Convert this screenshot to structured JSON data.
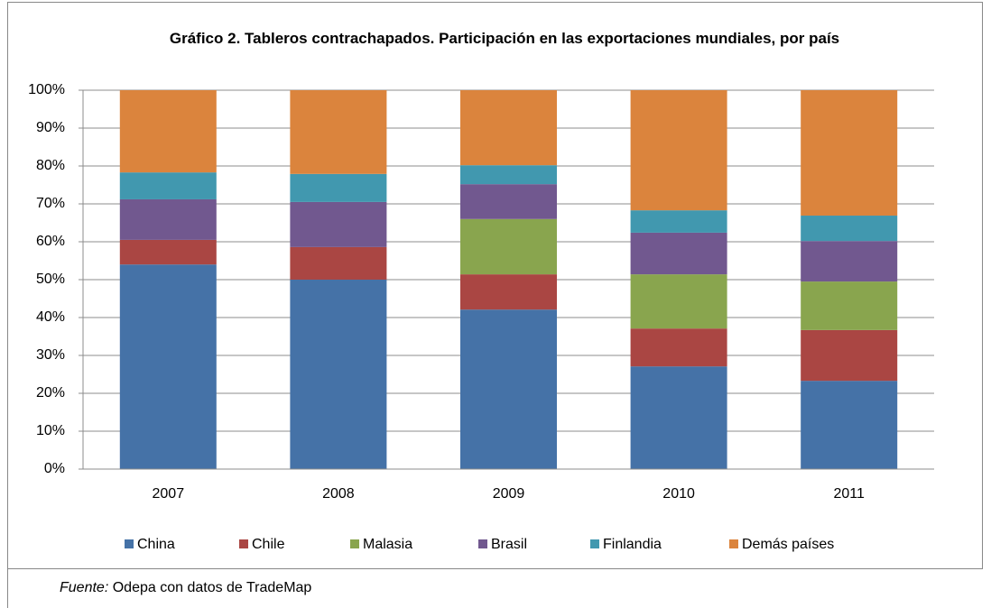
{
  "chart_data": {
    "type": "stacked_bar",
    "title": "Gráfico 2. Tableros contrachapados. Participación en las exportaciones mundiales, por país",
    "categories": [
      "2007",
      "2008",
      "2009",
      "2010",
      "2011"
    ],
    "series": [
      {
        "name": "China",
        "color": "#4572a7",
        "values": [
          54,
          50,
          42.1,
          27.1,
          23.3
        ]
      },
      {
        "name": "Chile",
        "color": "#aa4643",
        "values": [
          6.5,
          8.6,
          9.3,
          10,
          13.4
        ]
      },
      {
        "name": "Malasia",
        "color": "#89a54e",
        "values": [
          0,
          0,
          14.6,
          14.3,
          12.8
        ]
      },
      {
        "name": "Brasil",
        "color": "#71588f",
        "values": [
          10.7,
          11.9,
          9.2,
          11,
          10.7
        ]
      },
      {
        "name": "Finlandia",
        "color": "#4198af",
        "values": [
          7.1,
          7.4,
          5,
          5.9,
          6.7
        ]
      },
      {
        "name": "Demás países",
        "color": "#db843d",
        "values": [
          21.7,
          22.1,
          19.8,
          31.7,
          33.1
        ]
      }
    ],
    "ylim": [
      0,
      100
    ],
    "yticks": [
      {
        "value": 0,
        "label": "0%"
      },
      {
        "value": 10,
        "label": "10%"
      },
      {
        "value": 20,
        "label": "20%"
      },
      {
        "value": 30,
        "label": "30%"
      },
      {
        "value": 40,
        "label": "40%"
      },
      {
        "value": 50,
        "label": "50%"
      },
      {
        "value": 60,
        "label": "60%"
      },
      {
        "value": 70,
        "label": "70%"
      },
      {
        "value": 80,
        "label": "80%"
      },
      {
        "value": 90,
        "label": "90%"
      },
      {
        "value": 100,
        "label": "100%"
      }
    ],
    "grid": true,
    "legend": "bottom",
    "source_label": "Fuente:",
    "source_text": "Odepa con datos de TradeMap"
  }
}
